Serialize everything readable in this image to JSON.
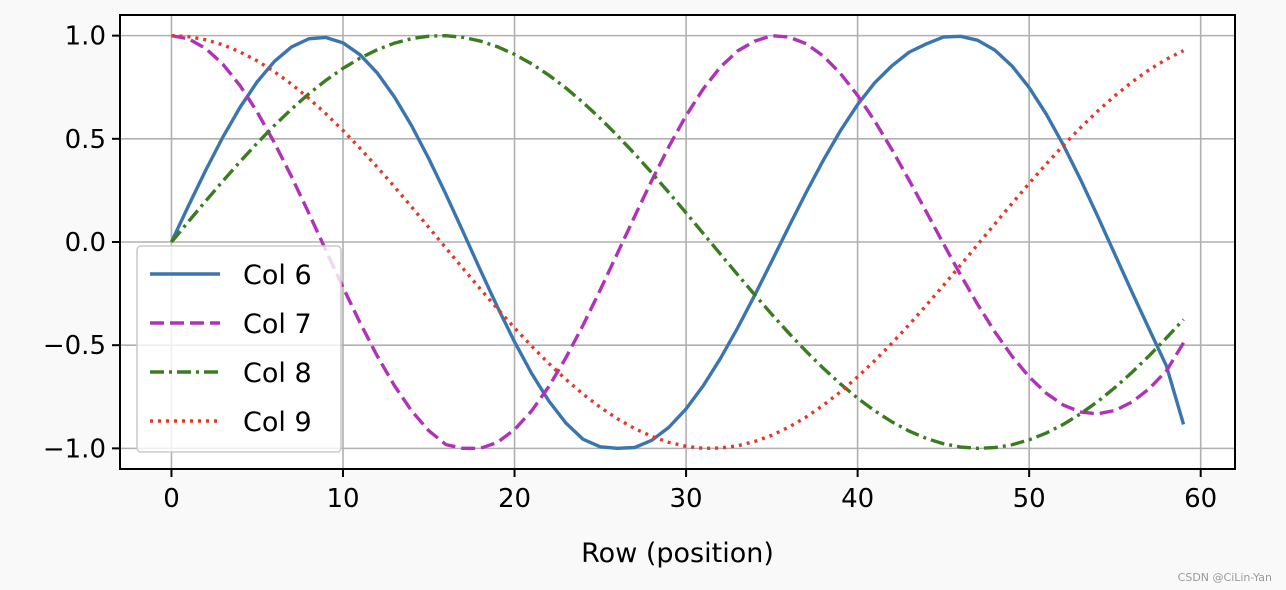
{
  "watermark": "CSDN @CiLin-Yan",
  "chart_data": {
    "type": "line",
    "title": "",
    "xlabel": "Row (position)",
    "ylabel": "",
    "xlim": [
      -3,
      62
    ],
    "ylim": [
      -1.1,
      1.1
    ],
    "xticks": [
      0,
      10,
      20,
      30,
      40,
      50,
      60
    ],
    "xtick_labels": [
      "0",
      "10",
      "20",
      "30",
      "40",
      "50",
      "60"
    ],
    "yticks": [
      1.0,
      0.5,
      0.0,
      -0.5,
      -1.0
    ],
    "ytick_labels": [
      "1.0",
      "0.5",
      "0.0",
      "−0.5",
      "−1.0"
    ],
    "grid": true,
    "legend_position": "lower left",
    "x": [
      0,
      1,
      2,
      3,
      4,
      5,
      6,
      7,
      8,
      9,
      10,
      11,
      12,
      13,
      14,
      15,
      16,
      17,
      18,
      19,
      20,
      21,
      22,
      23,
      24,
      25,
      26,
      27,
      28,
      29,
      30,
      31,
      32,
      33,
      34,
      35,
      36,
      37,
      38,
      39,
      40,
      41,
      42,
      43,
      44,
      45,
      46,
      47,
      48,
      49,
      50,
      51,
      52,
      53,
      54,
      55,
      56,
      57,
      58,
      59
    ],
    "series": [
      {
        "name": "Col 6",
        "color": "#3b75af",
        "dash": "solid",
        "values": [
          0.0,
          0.1769,
          0.3482,
          0.5087,
          0.653,
          0.7765,
          0.875,
          0.9452,
          0.9844,
          0.9912,
          0.9652,
          0.9071,
          0.8187,
          0.7028,
          0.5631,
          0.4041,
          0.2311,
          0.0495,
          -0.1348,
          -0.3145,
          -0.4839,
          -0.6376,
          -0.7704,
          -0.8779,
          -0.9563,
          -0.9924,
          -1.0,
          -0.9958,
          -0.9609,
          -0.8976,
          -0.8087,
          -0.6966,
          -0.5648,
          -0.4172,
          -0.2581,
          -0.0922,
          0.0756,
          0.24,
          0.3962,
          0.5397,
          0.6662,
          0.772,
          0.8539,
          0.9194,
          0.9599,
          0.9932,
          0.9967,
          0.9774,
          0.9299,
          0.8531,
          0.7486,
          0.6193,
          0.4689,
          0.302,
          0.1238,
          -0.0601,
          -0.2438,
          -0.4228,
          -0.6,
          -0.8838
        ]
      },
      {
        "name": "Col 7",
        "color": "#b032b8",
        "dash": "dashed",
        "values": [
          1.0,
          0.9842,
          0.9376,
          0.8613,
          0.7577,
          0.6297,
          0.4811,
          0.3165,
          0.1409,
          -0.04,
          -0.2195,
          -0.3923,
          -0.5529,
          -0.6964,
          -0.8183,
          -0.9145,
          -0.9818,
          -1.0,
          -1.0,
          -0.9712,
          -0.9092,
          -0.818,
          -0.7003,
          -0.5601,
          -0.4022,
          -0.2318,
          -0.0546,
          0.1239,
          0.2981,
          0.4627,
          0.6122,
          0.7419,
          0.8474,
          0.9254,
          0.9733,
          1.0,
          0.9931,
          0.961,
          0.9012,
          0.8165,
          0.7102,
          0.586,
          0.4478,
          0.2999,
          0.1467,
          -0.0077,
          -0.159,
          -0.3027,
          -0.4354,
          -0.5533,
          -0.6534,
          -0.7332,
          -0.7905,
          -0.824,
          -0.8327,
          -0.8164,
          -0.7754,
          -0.7108,
          -0.6245,
          -0.4882
        ]
      },
      {
        "name": "Col 8",
        "color": "#3a7d21",
        "dash": "dashdot",
        "values": [
          0.0,
          0.1,
          0.199,
          0.2955,
          0.3894,
          0.4794,
          0.5646,
          0.6442,
          0.7174,
          0.7833,
          0.8415,
          0.8912,
          0.932,
          0.9636,
          0.9854,
          0.9975,
          1.0,
          0.9917,
          0.9738,
          0.9463,
          0.9093,
          0.8632,
          0.8085,
          0.7457,
          0.6755,
          0.5985,
          0.5155,
          0.4274,
          0.335,
          0.2392,
          0.1411,
          0.0416,
          -0.0584,
          -0.1577,
          -0.2555,
          -0.3508,
          -0.4425,
          -0.5298,
          -0.6119,
          -0.6878,
          -0.7568,
          -0.8183,
          -0.8716,
          -0.9162,
          -0.9516,
          -0.9775,
          -0.9937,
          -1.0,
          -0.9962,
          -0.9825,
          -0.9589,
          -0.9258,
          -0.8835,
          -0.8323,
          -0.7728,
          -0.7055,
          -0.6313,
          -0.5508,
          -0.465,
          -0.3754
        ]
      },
      {
        "name": "Col 9",
        "color": "#e5382a",
        "dash": "dotted",
        "values": [
          1.0,
          0.995,
          0.9801,
          0.9553,
          0.9211,
          0.8776,
          0.8253,
          0.7648,
          0.6967,
          0.6216,
          0.5403,
          0.4536,
          0.3624,
          0.2675,
          0.17,
          0.0707,
          -0.0292,
          -0.1288,
          -0.2272,
          -0.3233,
          -0.4161,
          -0.5048,
          -0.5885,
          -0.6663,
          -0.7374,
          -0.8011,
          -0.8569,
          -0.9041,
          -0.9422,
          -0.971,
          -0.99,
          -1.0,
          -0.9983,
          -0.9875,
          -0.9668,
          -0.9365,
          -0.8968,
          -0.8481,
          -0.791,
          -0.7259,
          -0.6536,
          -0.5748,
          -0.4903,
          -0.4008,
          -0.3073,
          -0.2108,
          -0.1122,
          -0.0124,
          0.0875,
          0.1865,
          0.2837,
          0.378,
          0.4685,
          0.5544,
          0.6347,
          0.7087,
          0.7756,
          0.8347,
          0.8855,
          0.9275
        ]
      }
    ]
  }
}
